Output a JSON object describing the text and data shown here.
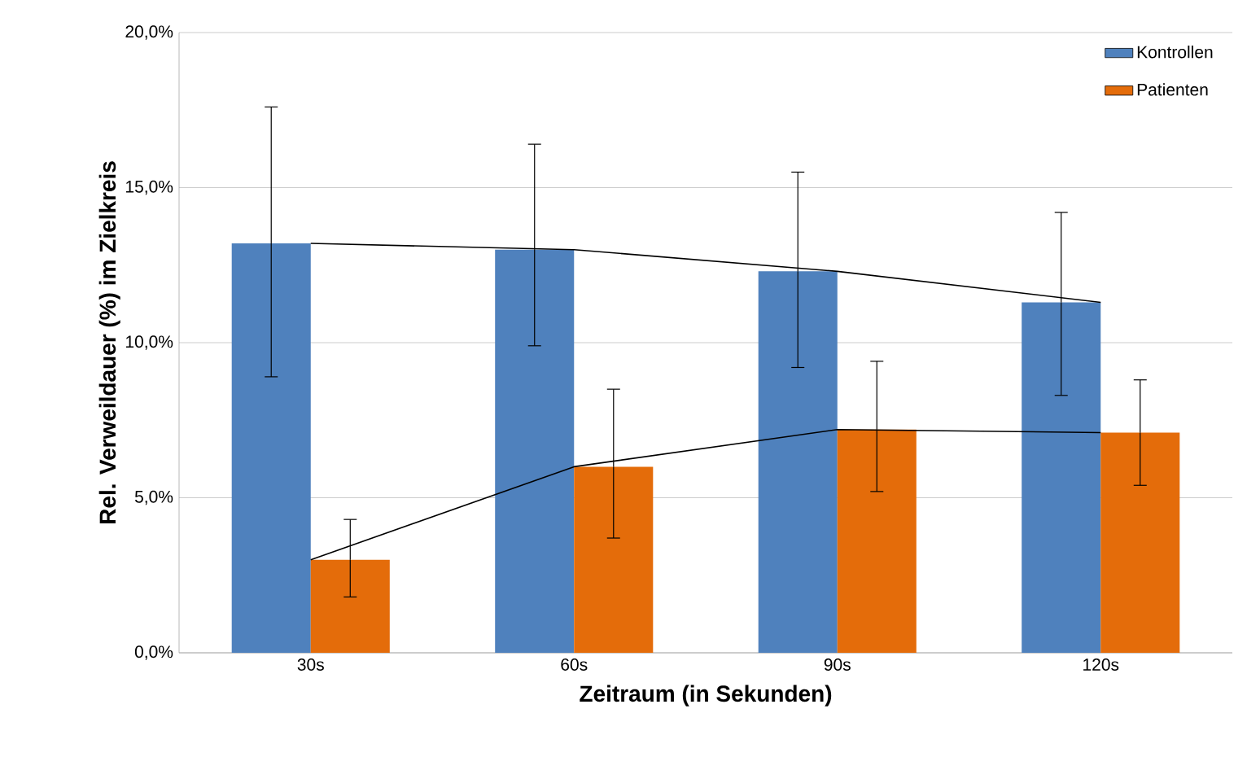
{
  "chart_data": {
    "type": "bar",
    "xlabel": "Zeitraum (in Sekunden)",
    "ylabel": "Rel. Verweildauer (%) im Zielkreis",
    "categories": [
      "30s",
      "60s",
      "90s",
      "120s"
    ],
    "series": [
      {
        "name": "Kontrollen",
        "color": "#4f81bd",
        "values": [
          13.2,
          13.0,
          12.3,
          11.3
        ],
        "errors": [
          [
            8.9,
            17.6
          ],
          [
            9.9,
            16.4
          ],
          [
            9.2,
            15.5
          ],
          [
            8.3,
            14.2
          ]
        ]
      },
      {
        "name": "Patienten",
        "color": "#e46c0a",
        "values": [
          3.0,
          6.0,
          7.2,
          7.1
        ],
        "errors": [
          [
            1.8,
            4.3
          ],
          [
            3.7,
            8.5
          ],
          [
            5.2,
            9.4
          ],
          [
            5.4,
            8.8
          ]
        ]
      },
      {
        "type": "line",
        "color": "#000000",
        "values": [
          13.2,
          13.0,
          12.3,
          11.3
        ]
      },
      {
        "type": "line",
        "color": "#000000",
        "values": [
          3.0,
          6.0,
          7.2,
          7.1
        ]
      }
    ],
    "ylim": [
      0,
      20
    ],
    "yticks": [
      {
        "value": 0,
        "label": "0,0%"
      },
      {
        "value": 5,
        "label": "5,0%"
      },
      {
        "value": 10,
        "label": "10,0%"
      },
      {
        "value": 15,
        "label": "15,0%"
      },
      {
        "value": 20,
        "label": "20,0%"
      }
    ],
    "grid": "y",
    "legend": "top right",
    "marker": "none"
  }
}
